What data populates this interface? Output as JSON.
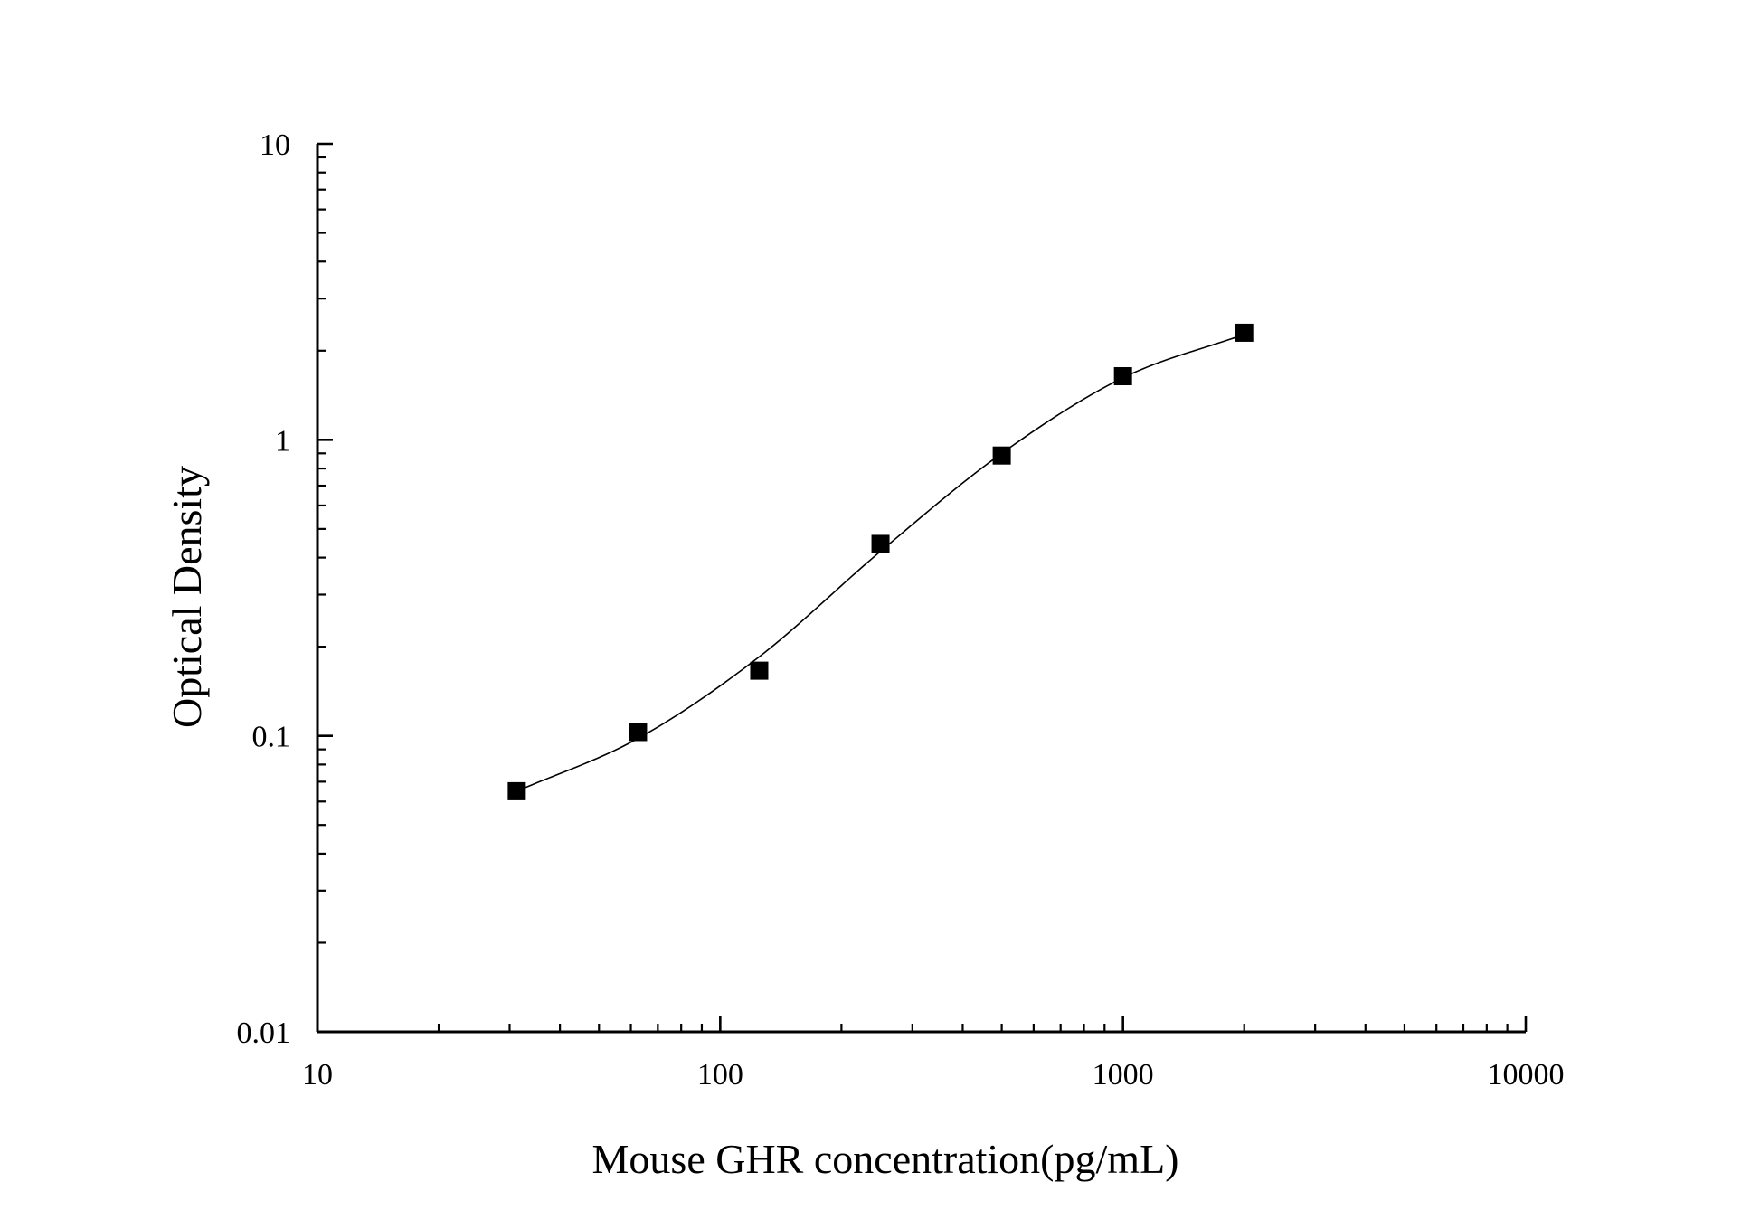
{
  "chart_data": {
    "type": "line",
    "title": "",
    "xlabel": "Mouse GHR concentration(pg/mL)",
    "ylabel": "Optical Density",
    "x_scale": "log",
    "y_scale": "log",
    "xlim": [
      10,
      10000
    ],
    "ylim": [
      0.01,
      10
    ],
    "x_ticks": [
      {
        "value": 10,
        "label": "10"
      },
      {
        "value": 100,
        "label": "100"
      },
      {
        "value": 1000,
        "label": "1000"
      },
      {
        "value": 10000,
        "label": "10000"
      }
    ],
    "y_ticks": [
      {
        "value": 0.01,
        "label": "0.01"
      },
      {
        "value": 0.1,
        "label": "0.1"
      },
      {
        "value": 1,
        "label": "1"
      },
      {
        "value": 10,
        "label": "10"
      }
    ],
    "grid": false,
    "legend": "none",
    "series": [
      {
        "marker": "square",
        "color": "#000000",
        "x": [
          31.25,
          62.5,
          125,
          250,
          500,
          1000,
          2000
        ],
        "y": [
          0.065,
          0.103,
          0.166,
          0.445,
          0.885,
          1.64,
          2.3
        ]
      }
    ],
    "fit_curve": {
      "color": "#000000",
      "x": [
        31.25,
        62.5,
        125,
        250,
        500,
        1000,
        2000
      ],
      "y": [
        0.065,
        0.098,
        0.185,
        0.42,
        0.9,
        1.62,
        2.27
      ]
    }
  }
}
